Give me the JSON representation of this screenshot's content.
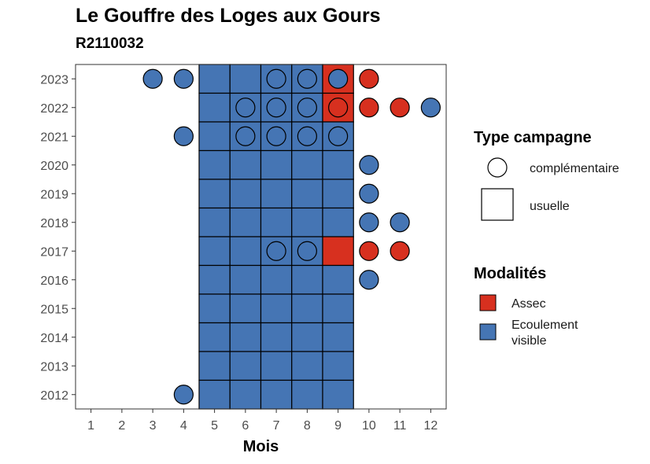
{
  "chart_data": {
    "type": "heatmap",
    "title": "Le Gouffre des Loges aux Gours",
    "subtitle": "R2110032",
    "xlabel": "Mois",
    "ylabel": "",
    "x_ticks": [
      "1",
      "2",
      "3",
      "4",
      "5",
      "6",
      "7",
      "8",
      "9",
      "10",
      "11",
      "12"
    ],
    "y_ticks": [
      "2012",
      "2013",
      "2014",
      "2015",
      "2016",
      "2017",
      "2018",
      "2019",
      "2020",
      "2021",
      "2022",
      "2023"
    ],
    "xlim": [
      0.5,
      12.5
    ],
    "ylim": [
      2011.5,
      2023.5
    ],
    "grid": false,
    "colors": {
      "Assec": "#d7301f",
      "Ecoulement visible": "#4575b4"
    },
    "legend": {
      "placement": "right",
      "shape_title": "Type campagne",
      "shape_items": [
        "complémentaire",
        "usuelle"
      ],
      "fill_title": "Modalités",
      "fill_items": [
        "Assec",
        "Ecoulement\nvisible"
      ]
    },
    "usuelle": [
      {
        "year": 2023,
        "month": 5,
        "modalite": "Ecoulement visible"
      },
      {
        "year": 2023,
        "month": 6,
        "modalite": "Ecoulement visible"
      },
      {
        "year": 2023,
        "month": 7,
        "modalite": "Ecoulement visible"
      },
      {
        "year": 2023,
        "month": 8,
        "modalite": "Ecoulement visible"
      },
      {
        "year": 2023,
        "month": 9,
        "modalite": "Assec"
      },
      {
        "year": 2022,
        "month": 5,
        "modalite": "Ecoulement visible"
      },
      {
        "year": 2022,
        "month": 6,
        "modalite": "Ecoulement visible"
      },
      {
        "year": 2022,
        "month": 7,
        "modalite": "Ecoulement visible"
      },
      {
        "year": 2022,
        "month": 8,
        "modalite": "Ecoulement visible"
      },
      {
        "year": 2022,
        "month": 9,
        "modalite": "Assec"
      },
      {
        "year": 2021,
        "month": 5,
        "modalite": "Ecoulement visible"
      },
      {
        "year": 2021,
        "month": 6,
        "modalite": "Ecoulement visible"
      },
      {
        "year": 2021,
        "month": 7,
        "modalite": "Ecoulement visible"
      },
      {
        "year": 2021,
        "month": 8,
        "modalite": "Ecoulement visible"
      },
      {
        "year": 2021,
        "month": 9,
        "modalite": "Ecoulement visible"
      },
      {
        "year": 2020,
        "month": 5,
        "modalite": "Ecoulement visible"
      },
      {
        "year": 2020,
        "month": 6,
        "modalite": "Ecoulement visible"
      },
      {
        "year": 2020,
        "month": 7,
        "modalite": "Ecoulement visible"
      },
      {
        "year": 2020,
        "month": 8,
        "modalite": "Ecoulement visible"
      },
      {
        "year": 2020,
        "month": 9,
        "modalite": "Ecoulement visible"
      },
      {
        "year": 2019,
        "month": 5,
        "modalite": "Ecoulement visible"
      },
      {
        "year": 2019,
        "month": 6,
        "modalite": "Ecoulement visible"
      },
      {
        "year": 2019,
        "month": 7,
        "modalite": "Ecoulement visible"
      },
      {
        "year": 2019,
        "month": 8,
        "modalite": "Ecoulement visible"
      },
      {
        "year": 2019,
        "month": 9,
        "modalite": "Ecoulement visible"
      },
      {
        "year": 2018,
        "month": 5,
        "modalite": "Ecoulement visible"
      },
      {
        "year": 2018,
        "month": 6,
        "modalite": "Ecoulement visible"
      },
      {
        "year": 2018,
        "month": 7,
        "modalite": "Ecoulement visible"
      },
      {
        "year": 2018,
        "month": 8,
        "modalite": "Ecoulement visible"
      },
      {
        "year": 2018,
        "month": 9,
        "modalite": "Ecoulement visible"
      },
      {
        "year": 2017,
        "month": 5,
        "modalite": "Ecoulement visible"
      },
      {
        "year": 2017,
        "month": 6,
        "modalite": "Ecoulement visible"
      },
      {
        "year": 2017,
        "month": 7,
        "modalite": "Ecoulement visible"
      },
      {
        "year": 2017,
        "month": 8,
        "modalite": "Ecoulement visible"
      },
      {
        "year": 2017,
        "month": 9,
        "modalite": "Assec"
      },
      {
        "year": 2016,
        "month": 5,
        "modalite": "Ecoulement visible"
      },
      {
        "year": 2016,
        "month": 6,
        "modalite": "Ecoulement visible"
      },
      {
        "year": 2016,
        "month": 7,
        "modalite": "Ecoulement visible"
      },
      {
        "year": 2016,
        "month": 8,
        "modalite": "Ecoulement visible"
      },
      {
        "year": 2016,
        "month": 9,
        "modalite": "Ecoulement visible"
      },
      {
        "year": 2015,
        "month": 5,
        "modalite": "Ecoulement visible"
      },
      {
        "year": 2015,
        "month": 6,
        "modalite": "Ecoulement visible"
      },
      {
        "year": 2015,
        "month": 7,
        "modalite": "Ecoulement visible"
      },
      {
        "year": 2015,
        "month": 8,
        "modalite": "Ecoulement visible"
      },
      {
        "year": 2015,
        "month": 9,
        "modalite": "Ecoulement visible"
      },
      {
        "year": 2014,
        "month": 5,
        "modalite": "Ecoulement visible"
      },
      {
        "year": 2014,
        "month": 6,
        "modalite": "Ecoulement visible"
      },
      {
        "year": 2014,
        "month": 7,
        "modalite": "Ecoulement visible"
      },
      {
        "year": 2014,
        "month": 8,
        "modalite": "Ecoulement visible"
      },
      {
        "year": 2014,
        "month": 9,
        "modalite": "Ecoulement visible"
      },
      {
        "year": 2013,
        "month": 5,
        "modalite": "Ecoulement visible"
      },
      {
        "year": 2013,
        "month": 6,
        "modalite": "Ecoulement visible"
      },
      {
        "year": 2013,
        "month": 7,
        "modalite": "Ecoulement visible"
      },
      {
        "year": 2013,
        "month": 8,
        "modalite": "Ecoulement visible"
      },
      {
        "year": 2013,
        "month": 9,
        "modalite": "Ecoulement visible"
      },
      {
        "year": 2012,
        "month": 5,
        "modalite": "Ecoulement visible"
      },
      {
        "year": 2012,
        "month": 6,
        "modalite": "Ecoulement visible"
      },
      {
        "year": 2012,
        "month": 7,
        "modalite": "Ecoulement visible"
      },
      {
        "year": 2012,
        "month": 8,
        "modalite": "Ecoulement visible"
      },
      {
        "year": 2012,
        "month": 9,
        "modalite": "Ecoulement visible"
      }
    ],
    "complementaire": [
      {
        "year": 2023,
        "month": 3,
        "modalite": "Ecoulement visible"
      },
      {
        "year": 2023,
        "month": 4,
        "modalite": "Ecoulement visible"
      },
      {
        "year": 2023,
        "month": 7,
        "modalite": "Ecoulement visible"
      },
      {
        "year": 2023,
        "month": 8,
        "modalite": "Ecoulement visible"
      },
      {
        "year": 2023,
        "month": 9,
        "modalite": "Ecoulement visible"
      },
      {
        "year": 2023,
        "month": 10,
        "modalite": "Assec"
      },
      {
        "year": 2022,
        "month": 6,
        "modalite": "Ecoulement visible"
      },
      {
        "year": 2022,
        "month": 7,
        "modalite": "Ecoulement visible"
      },
      {
        "year": 2022,
        "month": 8,
        "modalite": "Ecoulement visible"
      },
      {
        "year": 2022,
        "month": 9,
        "modalite": "Assec"
      },
      {
        "year": 2022,
        "month": 10,
        "modalite": "Assec"
      },
      {
        "year": 2022,
        "month": 11,
        "modalite": "Assec"
      },
      {
        "year": 2022,
        "month": 12,
        "modalite": "Ecoulement visible"
      },
      {
        "year": 2021,
        "month": 4,
        "modalite": "Ecoulement visible"
      },
      {
        "year": 2021,
        "month": 6,
        "modalite": "Ecoulement visible"
      },
      {
        "year": 2021,
        "month": 7,
        "modalite": "Ecoulement visible"
      },
      {
        "year": 2021,
        "month": 8,
        "modalite": "Ecoulement visible"
      },
      {
        "year": 2021,
        "month": 9,
        "modalite": "Ecoulement visible"
      },
      {
        "year": 2020,
        "month": 10,
        "modalite": "Ecoulement visible"
      },
      {
        "year": 2019,
        "month": 10,
        "modalite": "Ecoulement visible"
      },
      {
        "year": 2018,
        "month": 10,
        "modalite": "Ecoulement visible"
      },
      {
        "year": 2018,
        "month": 11,
        "modalite": "Ecoulement visible"
      },
      {
        "year": 2017,
        "month": 7,
        "modalite": "Ecoulement visible"
      },
      {
        "year": 2017,
        "month": 8,
        "modalite": "Ecoulement visible"
      },
      {
        "year": 2017,
        "month": 10,
        "modalite": "Assec"
      },
      {
        "year": 2017,
        "month": 11,
        "modalite": "Assec"
      },
      {
        "year": 2016,
        "month": 10,
        "modalite": "Ecoulement visible"
      },
      {
        "year": 2012,
        "month": 4,
        "modalite": "Ecoulement visible"
      }
    ]
  }
}
